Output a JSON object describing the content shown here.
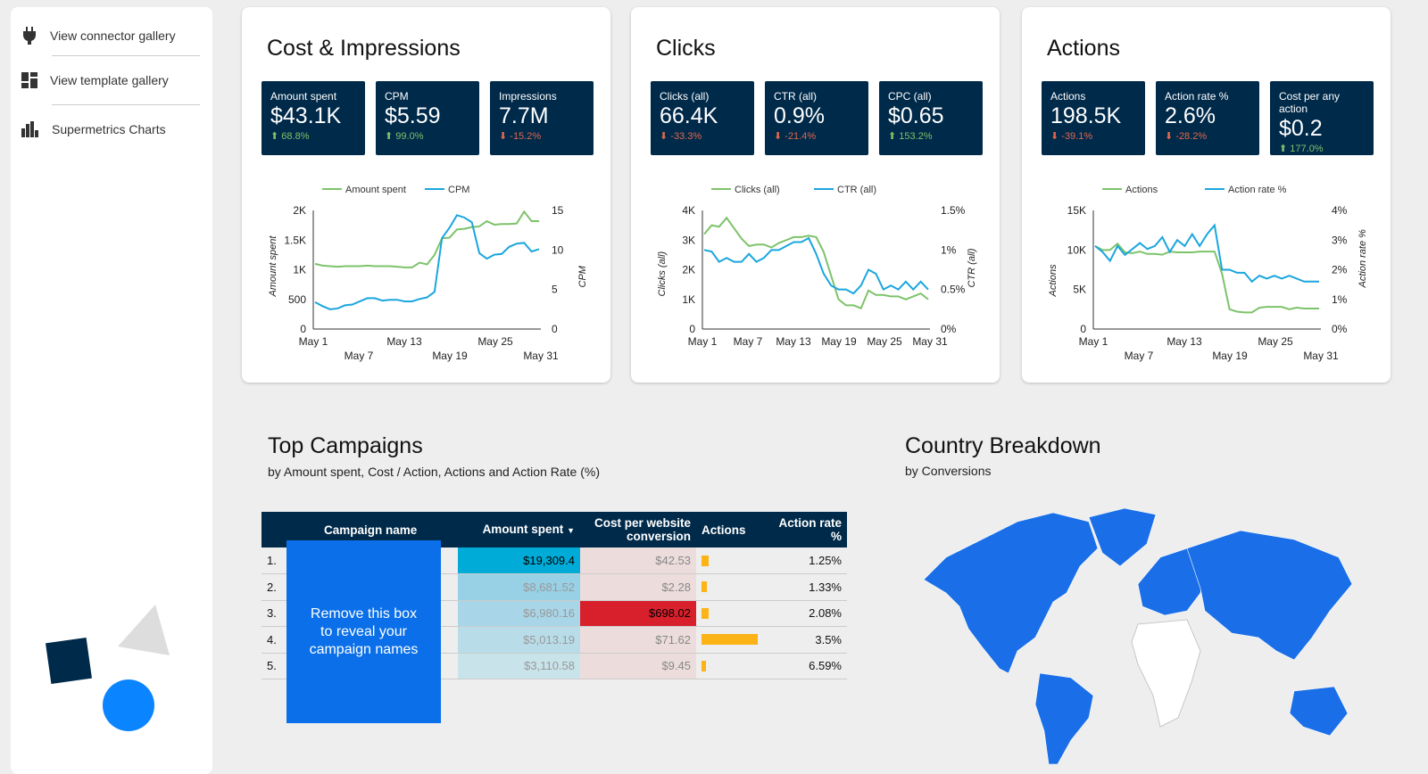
{
  "sidebar": {
    "items": [
      {
        "label": "View connector gallery",
        "icon": "plug-icon"
      },
      {
        "label": "View template gallery",
        "icon": "template-icon"
      },
      {
        "label": "Supermetrics Charts",
        "icon": "bar-chart-icon"
      }
    ]
  },
  "cards": [
    {
      "title": "Cost & Impressions",
      "kpis": [
        {
          "label": "Amount spent",
          "value": "$43.1K",
          "delta": "68.8%",
          "dir": "up"
        },
        {
          "label": "CPM",
          "value": "$5.59",
          "delta": "99.0%",
          "dir": "up"
        },
        {
          "label": "Impressions",
          "value": "7.7M",
          "delta": "-15.2%",
          "dir": "down"
        }
      ]
    },
    {
      "title": "Clicks",
      "kpis": [
        {
          "label": "Clicks (all)",
          "value": "66.4K",
          "delta": "-33.3%",
          "dir": "down"
        },
        {
          "label": "CTR (all)",
          "value": "0.9%",
          "delta": "-21.4%",
          "dir": "down"
        },
        {
          "label": "CPC (all)",
          "value": "$0.65",
          "delta": "153.2%",
          "dir": "up"
        }
      ]
    },
    {
      "title": "Actions",
      "kpis": [
        {
          "label": "Actions",
          "value": "198.5K",
          "delta": "-39.1%",
          "dir": "down"
        },
        {
          "label": "Action rate %",
          "value": "2.6%",
          "delta": "-28.2%",
          "dir": "down"
        },
        {
          "label": "Cost per any action",
          "value": "$0.2",
          "delta": "177.0%",
          "dir": "up"
        }
      ]
    }
  ],
  "chart_data": [
    {
      "type": "line",
      "title": "",
      "x_ticks_top": [
        "May 1",
        "May 13",
        "May 25"
      ],
      "x_ticks_bottom": [
        "May 7",
        "May 19",
        "May 31"
      ],
      "ylabel": "Amount spent",
      "y2label": "CPM",
      "ylim": [
        0,
        2000
      ],
      "y2lim": [
        0,
        15
      ],
      "y_ticks": [
        "0",
        "500",
        "1K",
        "1.5K",
        "2K"
      ],
      "y2_ticks": [
        "0",
        "5",
        "10",
        "15"
      ],
      "series": [
        {
          "name": "Amount spent",
          "axis": "left",
          "color": "#7dc36a",
          "values": [
            1100,
            1070,
            1060,
            1050,
            1060,
            1060,
            1060,
            1070,
            1060,
            1060,
            1060,
            1050,
            1040,
            1040,
            1120,
            1090,
            1250,
            1530,
            1540,
            1680,
            1690,
            1720,
            1730,
            1820,
            1760,
            1770,
            1770,
            1780,
            1980,
            1820,
            1820
          ]
        },
        {
          "name": "CPM",
          "axis": "right",
          "color": "#1aa6de",
          "values": [
            3.4,
            2.9,
            2.5,
            2.6,
            3.0,
            3.1,
            3.5,
            3.9,
            3.9,
            3.6,
            3.7,
            3.7,
            3.5,
            3.5,
            3.8,
            4.0,
            4.7,
            11.5,
            12.8,
            14.4,
            14.1,
            13.5,
            9.6,
            8.9,
            9.4,
            9.5,
            10.4,
            10.8,
            10.9,
            9.8,
            10.1
          ]
        }
      ]
    },
    {
      "type": "line",
      "title": "",
      "x_ticks_top": [
        "May 1",
        "May 7",
        "May 13",
        "May 19",
        "May 25",
        "May 31"
      ],
      "x_ticks_bottom": [],
      "ylabel": "Clicks (all)",
      "y2label": "CTR (all)",
      "ylim": [
        0,
        4000
      ],
      "y2lim": [
        0,
        1.5
      ],
      "y_ticks": [
        "0",
        "1K",
        "2K",
        "3K",
        "4K"
      ],
      "y2_ticks": [
        "0%",
        "0.5%",
        "1%",
        "1.5%"
      ],
      "series": [
        {
          "name": "Clicks (all)",
          "axis": "left",
          "color": "#7dc36a",
          "values": [
            3200,
            3500,
            3450,
            3750,
            3400,
            3050,
            2800,
            2850,
            2850,
            2750,
            2900,
            3000,
            3100,
            3100,
            3150,
            3100,
            2600,
            1800,
            1000,
            800,
            800,
            700,
            1300,
            1150,
            1150,
            1100,
            1100,
            1000,
            1100,
            1200,
            1000
          ]
        },
        {
          "name": "CTR (all)",
          "axis": "right",
          "color": "#1aa6de",
          "values": [
            1.0,
            0.98,
            0.85,
            0.9,
            0.85,
            0.85,
            0.95,
            0.85,
            0.9,
            1.0,
            1.0,
            1.05,
            1.1,
            1.1,
            1.15,
            0.95,
            0.7,
            0.55,
            0.5,
            0.5,
            0.45,
            0.55,
            0.75,
            0.7,
            0.5,
            0.55,
            0.5,
            0.6,
            0.5,
            0.6,
            0.5
          ]
        }
      ]
    },
    {
      "type": "line",
      "title": "",
      "x_ticks_top": [
        "May 1",
        "May 13",
        "May 25"
      ],
      "x_ticks_bottom": [
        "May 7",
        "May 19",
        "May 31"
      ],
      "ylabel": "Actions",
      "y2label": "Action rate %",
      "ylim": [
        0,
        15000
      ],
      "y2lim": [
        0,
        4
      ],
      "y_ticks": [
        "0",
        "5K",
        "10K",
        "15K"
      ],
      "y2_ticks": [
        "0%",
        "1%",
        "2%",
        "3%",
        "4%"
      ],
      "series": [
        {
          "name": "Actions",
          "axis": "left",
          "color": "#7dc36a",
          "values": [
            10500,
            10000,
            10000,
            10800,
            9700,
            9600,
            9800,
            9500,
            9500,
            9400,
            9800,
            9700,
            9700,
            9700,
            9800,
            9800,
            9800,
            7000,
            2500,
            2200,
            2100,
            2100,
            2700,
            2800,
            2800,
            2800,
            2500,
            2700,
            2600,
            2600,
            2600
          ]
        },
        {
          "name": "Action rate %",
          "axis": "right",
          "color": "#1aa6de",
          "values": [
            2.8,
            2.6,
            2.3,
            2.8,
            2.5,
            2.7,
            2.9,
            2.7,
            2.8,
            3.1,
            2.6,
            3.0,
            2.8,
            3.2,
            2.8,
            3.2,
            3.5,
            2.0,
            2.0,
            1.9,
            1.9,
            1.6,
            1.8,
            1.7,
            1.8,
            1.7,
            1.8,
            1.7,
            1.6,
            1.6,
            1.6
          ]
        }
      ]
    }
  ],
  "campaigns": {
    "title": "Top Campaigns",
    "subtitle": "by  Amount spent, Cost / Action, Actions and Action Rate (%)",
    "columns": [
      "Campaign name",
      "Amount spent",
      "Cost per website conversion",
      "Actions",
      "Action rate %"
    ],
    "sort_icon": "▼",
    "cover_text": "Remove this box to reveal your campaign names",
    "rows": [
      {
        "n": "1.",
        "amount": "$19,309.4",
        "cost": "$42.53",
        "actions": 0.06,
        "rate": "1.25%"
      },
      {
        "n": "2.",
        "amount": "$8,681.52",
        "cost": "$2.28",
        "actions": 0.05,
        "rate": "1.33%"
      },
      {
        "n": "3.",
        "amount": "$6,980.16",
        "cost": "$698.02",
        "actions": 0.06,
        "rate": "2.08%"
      },
      {
        "n": "4.",
        "amount": "$5,013.19",
        "cost": "$71.62",
        "actions": 0.5,
        "rate": "3.5%"
      },
      {
        "n": "5.",
        "amount": "$3,110.58",
        "cost": "$9.45",
        "actions": 0.04,
        "rate": "6.59%"
      }
    ]
  },
  "country": {
    "title": "Country Breakdown",
    "subtitle": "by Conversions"
  }
}
